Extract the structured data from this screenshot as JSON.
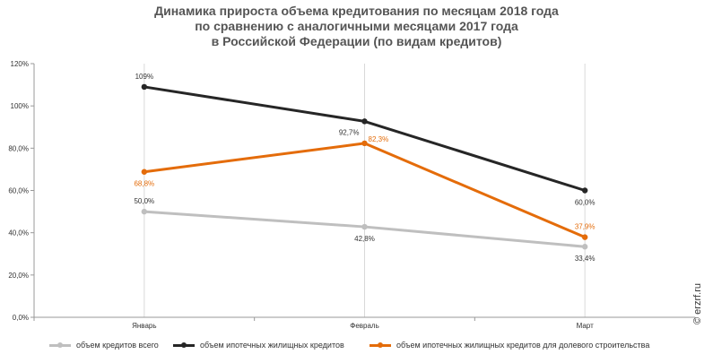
{
  "title_lines": [
    "Динамика прироста объема кредитования по месяцам 2018 года",
    "по сравнению  с аналогичными месяцами 2017 года",
    "в Российской  Федерации (по видам кредитов)"
  ],
  "watermark": "© erzrf.ru",
  "colors": {
    "all_loans": "#bfbfbf",
    "mortgage": "#262626",
    "shared_construction": "#e46c0a",
    "axis": "#999999",
    "grid": "#d9d9d9",
    "label_text": "#333333"
  },
  "chart_data": {
    "type": "line",
    "categories": [
      "Январь",
      "Февраль",
      "Март"
    ],
    "ylim": [
      0,
      120
    ],
    "yticks": [
      0,
      20,
      40,
      60,
      80,
      100,
      120
    ],
    "ytick_labels": [
      "0,0%",
      "20,0%",
      "40,0%",
      "60,0%",
      "80,0%",
      "100%",
      "120%"
    ],
    "grid": "vertical",
    "legend_position": "bottom",
    "series": [
      {
        "key": "all_loans",
        "name": "объем кредитов  всего",
        "values": [
          50.0,
          42.8,
          33.4
        ],
        "labels": [
          "50,0%",
          "42,8%",
          "33,4%"
        ]
      },
      {
        "key": "mortgage",
        "name": "объем ипотечных  жилищных  кредитов",
        "values": [
          109,
          92.7,
          60.0
        ],
        "labels": [
          "109%",
          "92,7%",
          "60,0%"
        ]
      },
      {
        "key": "shared_construction",
        "name": "объем ипотечных  жилищных  кредитов  для долевого  строительства",
        "values": [
          68.8,
          82.3,
          37.9
        ],
        "labels": [
          "68,8%",
          "82,3%",
          "37,9%"
        ]
      }
    ]
  }
}
